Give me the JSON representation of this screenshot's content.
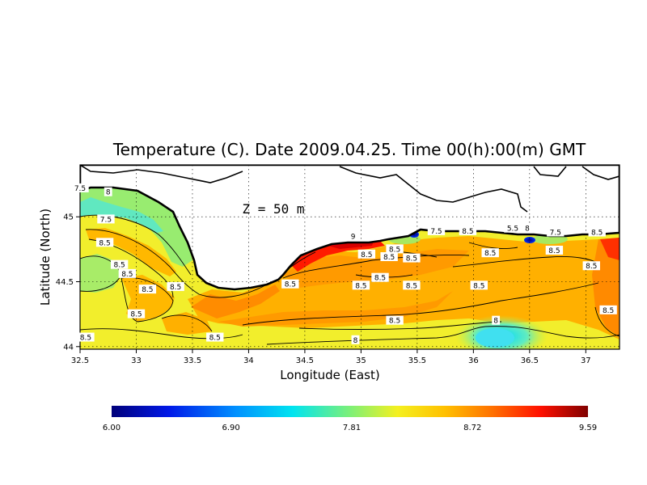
{
  "chart_data": {
    "type": "heatmap",
    "title": "Temperature (C). Date 2009.04.25. Time 00(h):00(m) GMT",
    "xlabel": "Longitude (East)",
    "ylabel": "Latitude (North)",
    "annotation": "Z = 50 m",
    "xlim": [
      32.5,
      37.3
    ],
    "ylim": [
      43.98,
      45.4
    ],
    "x_ticks": [
      "32.5",
      "33",
      "33.5",
      "34",
      "34.5",
      "35",
      "35.5",
      "36",
      "36.5",
      "37"
    ],
    "y_ticks": [
      "44",
      "44.5",
      "45"
    ],
    "grid": true,
    "colorbar": {
      "min": 6.0,
      "max": 9.59,
      "tick_labels": [
        "6.00",
        "6.90",
        "7.81",
        "8.72",
        "9.59"
      ]
    },
    "contour_labels": [
      {
        "text": "7.5",
        "lon": 32.5,
        "lat": 45.22
      },
      {
        "text": "8",
        "lon": 32.75,
        "lat": 45.19
      },
      {
        "text": "7.5",
        "lon": 32.73,
        "lat": 44.98
      },
      {
        "text": "8.5",
        "lon": 32.72,
        "lat": 44.8
      },
      {
        "text": "8.5",
        "lon": 32.85,
        "lat": 44.63
      },
      {
        "text": "8.5",
        "lon": 32.92,
        "lat": 44.56
      },
      {
        "text": "8.5",
        "lon": 33.1,
        "lat": 44.44
      },
      {
        "text": "8.5",
        "lon": 33.35,
        "lat": 44.46
      },
      {
        "text": "8.5",
        "lon": 33.0,
        "lat": 44.25
      },
      {
        "text": "8.5",
        "lon": 32.55,
        "lat": 44.07
      },
      {
        "text": "8.5",
        "lon": 33.7,
        "lat": 44.07
      },
      {
        "text": "8.5",
        "lon": 34.37,
        "lat": 44.48
      },
      {
        "text": "9",
        "lon": 34.93,
        "lat": 44.85
      },
      {
        "text": "8.5",
        "lon": 35.05,
        "lat": 44.71
      },
      {
        "text": "8.5",
        "lon": 35.3,
        "lat": 44.75
      },
      {
        "text": "8.5",
        "lon": 35.25,
        "lat": 44.69
      },
      {
        "text": "8.5",
        "lon": 35.45,
        "lat": 44.68
      },
      {
        "text": "7.5",
        "lon": 35.67,
        "lat": 44.89
      },
      {
        "text": "8.5",
        "lon": 35.95,
        "lat": 44.89
      },
      {
        "text": "5.5",
        "lon": 36.35,
        "lat": 44.91
      },
      {
        "text": "8",
        "lon": 36.48,
        "lat": 44.91
      },
      {
        "text": "7.5",
        "lon": 36.73,
        "lat": 44.88
      },
      {
        "text": "8.5",
        "lon": 37.1,
        "lat": 44.88
      },
      {
        "text": "8.5",
        "lon": 36.15,
        "lat": 44.72
      },
      {
        "text": "8.5",
        "lon": 36.72,
        "lat": 44.74
      },
      {
        "text": "8.5",
        "lon": 37.05,
        "lat": 44.62
      },
      {
        "text": "8.5",
        "lon": 35.17,
        "lat": 44.53
      },
      {
        "text": "8.5",
        "lon": 35.0,
        "lat": 44.47
      },
      {
        "text": "8.5",
        "lon": 35.45,
        "lat": 44.47
      },
      {
        "text": "8.5",
        "lon": 36.05,
        "lat": 44.47
      },
      {
        "text": "8.5",
        "lon": 35.3,
        "lat": 44.2
      },
      {
        "text": "8",
        "lon": 36.2,
        "lat": 44.2
      },
      {
        "text": "8",
        "lon": 34.95,
        "lat": 44.05
      },
      {
        "text": "8.5",
        "lon": 37.2,
        "lat": 44.28
      }
    ]
  }
}
